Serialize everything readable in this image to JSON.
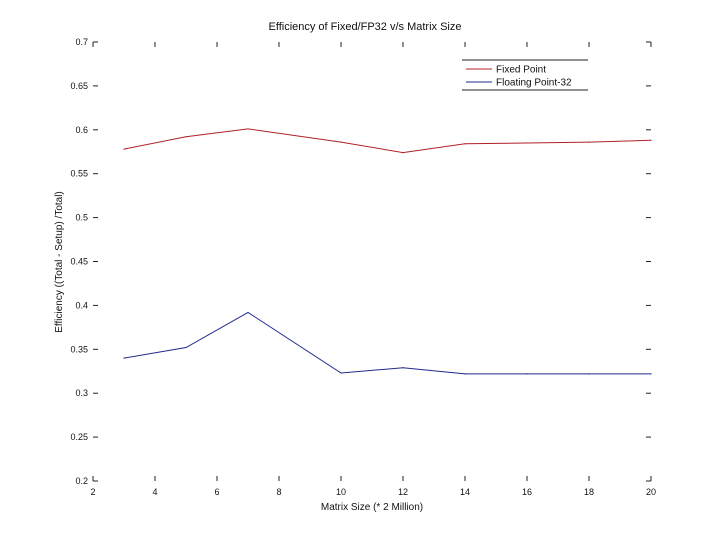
{
  "chart_data": {
    "type": "line",
    "title": "Efficiency of Fixed/FP32 v/s Matrix Size",
    "xlabel": "Matrix Size (* 2 Million)",
    "ylabel": "Efficiency ((Total - Setup) /Total)",
    "xlim": [
      2,
      20
    ],
    "ylim": [
      0.2,
      0.7
    ],
    "xticks": [
      2,
      4,
      6,
      8,
      10,
      12,
      14,
      16,
      18,
      20
    ],
    "yticks": [
      0.2,
      0.25,
      0.3,
      0.35,
      0.4,
      0.45,
      0.5,
      0.55,
      0.6,
      0.65,
      0.7
    ],
    "grid": false,
    "legend_position": "top-right",
    "series": [
      {
        "name": "Fixed Point",
        "color": "#b0202a",
        "x": [
          3,
          5,
          7,
          10,
          12,
          14,
          16,
          18,
          20
        ],
        "y": [
          0.578,
          0.592,
          0.601,
          0.586,
          0.574,
          0.584,
          0.585,
          0.586,
          0.588
        ]
      },
      {
        "name": "Floating Point-32",
        "color": "#1f2a8c",
        "x": [
          3,
          5,
          7,
          10,
          12,
          14,
          16,
          18,
          20
        ],
        "y": [
          0.34,
          0.352,
          0.392,
          0.323,
          0.329,
          0.322,
          0.322,
          0.322,
          0.322
        ]
      }
    ]
  }
}
